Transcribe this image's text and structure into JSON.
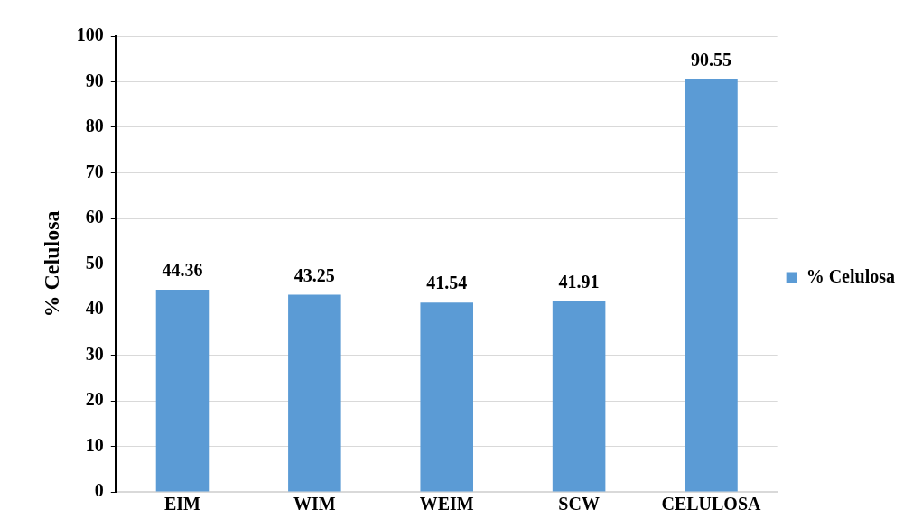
{
  "chart_data": {
    "type": "bar",
    "ylabel": "% Celulosa",
    "categories": [
      "EIM",
      "WIM",
      "WEIM",
      "SCW",
      "CELULOSA"
    ],
    "series": [
      {
        "name": "% Celulosa",
        "color": "#5b9bd5",
        "values": [
          44.36,
          43.25,
          41.54,
          41.91,
          90.55
        ]
      }
    ],
    "ylim": [
      0,
      100
    ],
    "yticks": [
      0,
      10,
      20,
      30,
      40,
      50,
      60,
      70,
      80,
      90,
      100
    ],
    "grid": "y",
    "legend": "right",
    "data_labels": true
  }
}
